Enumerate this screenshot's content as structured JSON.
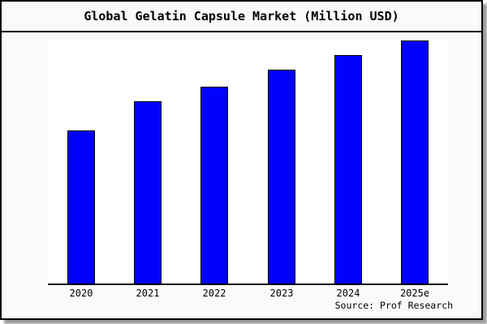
{
  "title": "Global Gelatin Capsule Market (Million USD)",
  "source_note": "Source: Prof Research",
  "colors": {
    "bar_fill": "#0000ff",
    "bar_border": "#000000",
    "panel_background": "#fafafa",
    "plot_background": "#ffffff",
    "axis": "#000000",
    "shadow": "#9a9a9a",
    "text": "#000000"
  },
  "chart_data": {
    "type": "bar",
    "title": "Global Gelatin Capsule Market (Million USD)",
    "categories": [
      "2020",
      "2021",
      "2022",
      "2023",
      "2024",
      "2025e"
    ],
    "values": [
      63,
      75,
      81,
      88,
      94,
      100
    ],
    "series_note": "No y-axis ticks or data labels shown; values are relative heights indexed to 2025e = 100",
    "xlabel": "",
    "ylabel": "",
    "ylim": [
      0,
      100
    ],
    "grid": false,
    "legend": null,
    "annotations": [
      "Source: Prof Research"
    ]
  }
}
